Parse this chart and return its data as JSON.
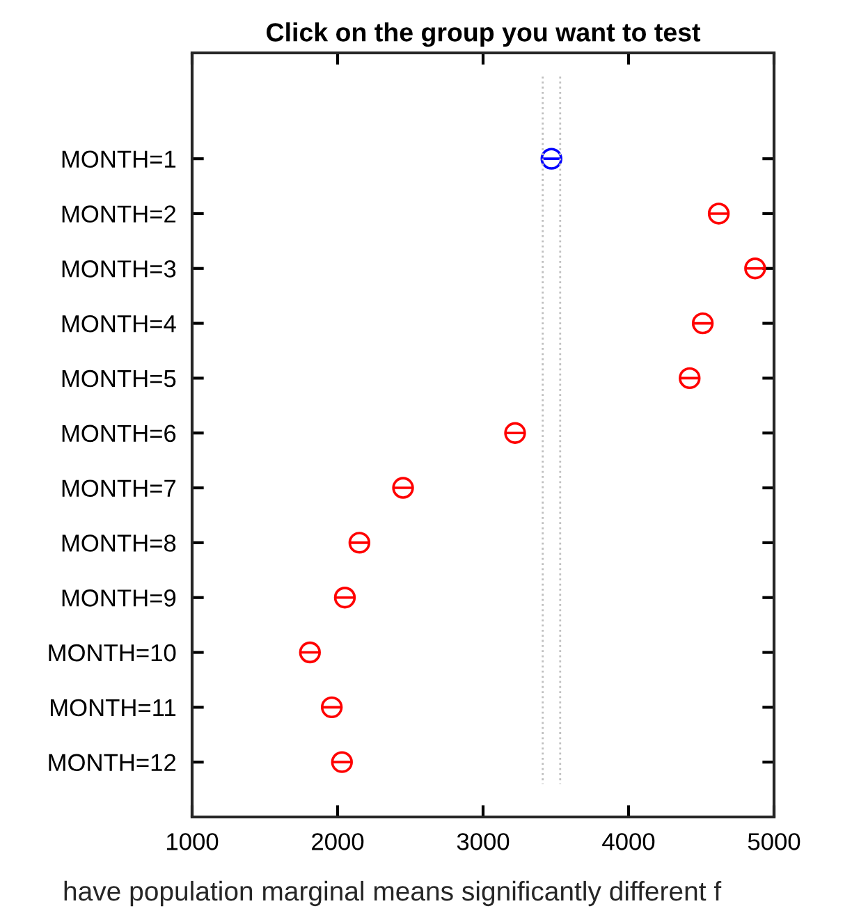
{
  "chart_data": {
    "type": "scatter",
    "orientation": "horizontal",
    "title": "Click on the group you want to test",
    "categories": [
      "MONTH=1",
      "MONTH=2",
      "MONTH=3",
      "MONTH=4",
      "MONTH=5",
      "MONTH=6",
      "MONTH=7",
      "MONTH=8",
      "MONTH=9",
      "MONTH=10",
      "MONTH=11",
      "MONTH=12"
    ],
    "values": [
      3470,
      4620,
      4870,
      4510,
      4420,
      3220,
      2450,
      2150,
      2050,
      1810,
      1960,
      2030
    ],
    "colors": [
      "#0000ff",
      "#ff0000",
      "#ff0000",
      "#ff0000",
      "#ff0000",
      "#ff0000",
      "#ff0000",
      "#ff0000",
      "#ff0000",
      "#ff0000",
      "#ff0000",
      "#ff0000"
    ],
    "xlim": [
      1000,
      5000
    ],
    "xticks": [
      1000,
      2000,
      3000,
      4000,
      5000
    ],
    "ref_lines": [
      {
        "axis": "x",
        "value": 3410,
        "color": "#c0c0c0",
        "line_style": "dotted"
      },
      {
        "axis": "x",
        "value": 3530,
        "color": "#c0c0c0",
        "line_style": "dotted"
      }
    ],
    "grid": false,
    "annotations": [
      "have population marginal means significantly different f"
    ]
  }
}
